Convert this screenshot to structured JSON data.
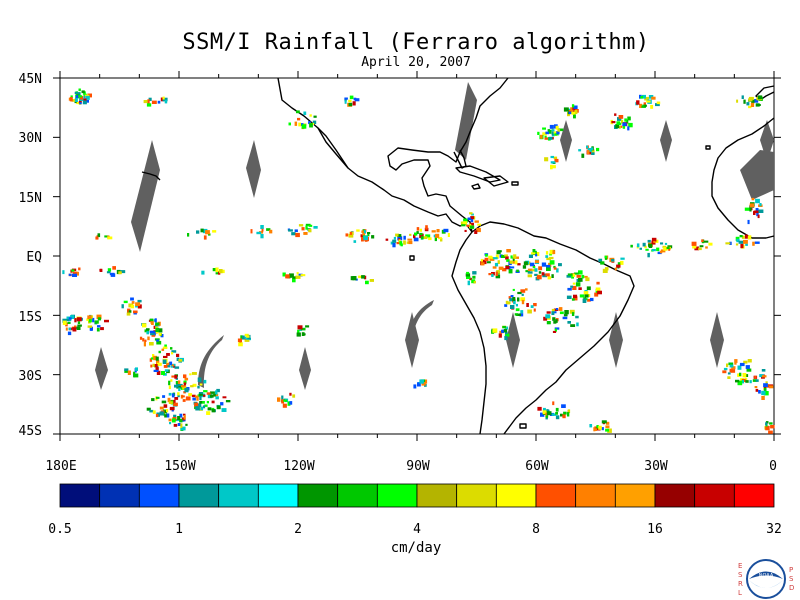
{
  "title": "SSM/I Rainfall (Ferraro algorithm)",
  "subtitle": "April 20, 2007",
  "lat_labels": [
    "45N",
    "30N",
    "15N",
    "EQ",
    "15S",
    "30S",
    "45S"
  ],
  "lon_labels": [
    "180E",
    "150W",
    "120W",
    "90W",
    "60W",
    "30W",
    "0"
  ],
  "colorbar": {
    "colors": [
      "#000e7a",
      "#0031b4",
      "#0050ff",
      "#00999a",
      "#00c8c8",
      "#00ffff",
      "#009600",
      "#00c800",
      "#00ff00",
      "#b4b400",
      "#dcdc00",
      "#ffff00",
      "#ff5000",
      "#ff8000",
      "#ffa000",
      "#960000",
      "#c80000",
      "#ff0000"
    ],
    "tick_labels": [
      "0.5",
      "1",
      "2",
      "4",
      "8",
      "16",
      "32"
    ],
    "units": "cm/day"
  },
  "logo": {
    "left_letters": "ESRL",
    "right_letters": "PSD",
    "badge_text": "NOAA"
  },
  "colors": {
    "coast": "#000000",
    "missing_swath": "#606060"
  }
}
